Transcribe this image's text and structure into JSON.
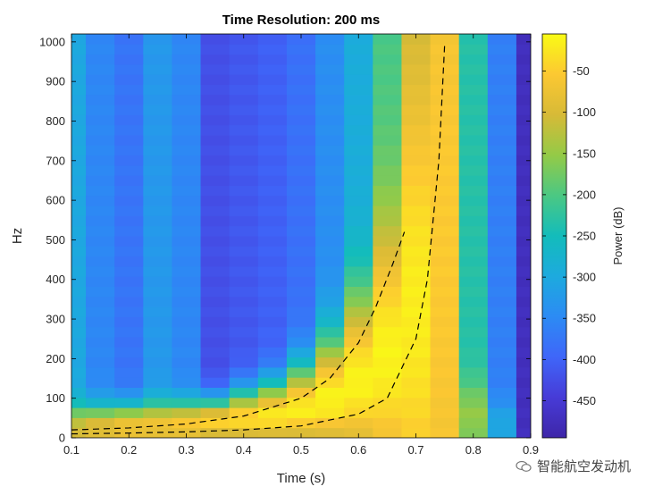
{
  "chart_data": {
    "type": "heatmap",
    "title": "Time Resolution: 200 ms",
    "xlabel": "Time (s)",
    "ylabel": "Hz",
    "xlim": [
      0.1,
      0.9
    ],
    "ylim": [
      0,
      1020
    ],
    "xticks": [
      "0.1",
      "0.2",
      "0.3",
      "0.4",
      "0.5",
      "0.6",
      "0.7",
      "0.8",
      "0.9"
    ],
    "yticks": [
      "0",
      "100",
      "200",
      "300",
      "400",
      "500",
      "600",
      "700",
      "800",
      "900",
      "1000"
    ],
    "colorbar": {
      "label": "Power (dB)",
      "range": [
        -495,
        -5
      ],
      "ticks": [
        "-50",
        "-100",
        "-150",
        "-200",
        "-250",
        "-300",
        "-350",
        "-400",
        "-450"
      ]
    },
    "time_bins": [
      0.1,
      0.15,
      0.2,
      0.25,
      0.3,
      0.35,
      0.4,
      0.45,
      0.5,
      0.55,
      0.6,
      0.65,
      0.7,
      0.75,
      0.8,
      0.85,
      0.9
    ],
    "column_profiles": [
      {
        "bg": -300,
        "chirp_hz": 40,
        "peak": -100
      },
      {
        "bg": -350,
        "chirp_hz": 45,
        "peak": -80
      },
      {
        "bg": -375,
        "chirp_hz": 50,
        "peak": -60
      },
      {
        "bg": -325,
        "chirp_hz": 55,
        "peak": -60
      },
      {
        "bg": -350,
        "chirp_hz": 60,
        "peak": -50
      },
      {
        "bg": -420,
        "chirp_hz": 70,
        "peak": -40
      },
      {
        "bg": -410,
        "chirp_hz": 85,
        "peak": -30
      },
      {
        "bg": -400,
        "chirp_hz": 100,
        "peak": -20
      },
      {
        "bg": -380,
        "chirp_hz": 130,
        "peak": -15
      },
      {
        "bg": -340,
        "chirp_hz": 180,
        "peak": -10
      },
      {
        "bg": -290,
        "chirp_hz": 260,
        "peak": -10
      },
      {
        "bg": -200,
        "chirp_hz": 380,
        "peak": -10
      },
      {
        "bg": -120,
        "chirp_hz": 600,
        "peak": -15
      },
      {
        "bg": -80,
        "chirp_hz": 900,
        "peak": -50
      },
      {
        "bg": -230,
        "chirp_hz": 100,
        "peak": -150
      },
      {
        "bg": -360,
        "chirp_hz": 60,
        "peak": -300
      },
      {
        "bg": -470,
        "chirp_hz": 0,
        "peak": -470
      }
    ],
    "overlay_curves": [
      {
        "style": "dashed",
        "x": [
          0.1,
          0.2,
          0.3,
          0.4,
          0.5,
          0.55,
          0.6,
          0.63,
          0.66,
          0.68
        ],
        "y": [
          20,
          25,
          35,
          55,
          100,
          150,
          240,
          330,
          440,
          520
        ]
      },
      {
        "style": "dashed",
        "x": [
          0.1,
          0.2,
          0.3,
          0.4,
          0.5,
          0.6,
          0.65,
          0.7,
          0.72,
          0.74,
          0.75
        ],
        "y": [
          10,
          12,
          15,
          20,
          30,
          60,
          100,
          250,
          400,
          700,
          990
        ]
      }
    ]
  },
  "watermark": {
    "text": "智能航空发动机",
    "icon": "chat-bubbles-icon"
  }
}
